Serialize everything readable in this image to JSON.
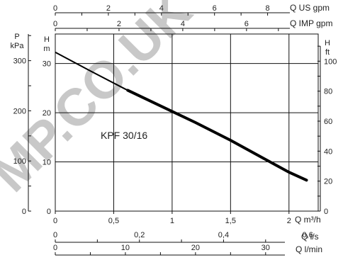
{
  "watermark": "MP.CO.UK",
  "chart_data": {
    "type": "line",
    "series": [
      {
        "name": "KPF 30/16",
        "x": [
          0.0,
          0.3,
          0.6,
          0.9,
          1.2,
          1.5,
          1.8,
          2.0,
          2.15
        ],
        "values": [
          32.3,
          28.5,
          24.8,
          21.4,
          18.0,
          14.4,
          10.5,
          7.9,
          6.3
        ],
        "bold_from_x": 0.62
      }
    ],
    "xlim": [
      0,
      2.25
    ],
    "ylim": [
      0,
      36
    ],
    "grid": true,
    "axes": {
      "top1": {
        "label": "Q US gpm",
        "ticks": [
          "0",
          "2",
          "4",
          "6",
          "8"
        ],
        "tick_values": [
          0,
          2,
          4,
          6,
          8
        ],
        "factor": 4.4029
      },
      "top2": {
        "label": "Q IMP gpm",
        "ticks": [
          "0",
          "2",
          "4",
          "6"
        ],
        "tick_values": [
          0,
          2,
          4,
          6
        ],
        "factor": 3.6662
      },
      "bottom_main": {
        "label": "Q m³/h",
        "ticks": [
          "0",
          "0,5",
          "1",
          "1,5",
          "2"
        ],
        "tick_values": [
          0,
          0.5,
          1,
          1.5,
          2
        ],
        "factor": 1
      },
      "bottom2": {
        "label": "Q l/s",
        "ticks": [
          "0",
          "0,2",
          "0,4",
          "0,6"
        ],
        "tick_values": [
          0,
          0.2,
          0.4,
          0.6
        ],
        "factor": 0.27778
      },
      "bottom3": {
        "label": "Q l/min",
        "ticks": [
          "0",
          "10",
          "20",
          "30"
        ],
        "tick_values": [
          0,
          10,
          20,
          30
        ],
        "factor": 16.667
      },
      "left_main": {
        "label_top": "H",
        "label_unit": "m",
        "ticks": [
          "0",
          "10",
          "20",
          "30"
        ],
        "tick_values": [
          0,
          10,
          20,
          30
        ]
      },
      "left_pressure": {
        "label_top": "P",
        "label_unit": "kPa",
        "ticks": [
          "0",
          "100",
          "200",
          "300"
        ],
        "tick_values": [
          0,
          100,
          200,
          300
        ],
        "factor": 9.81
      },
      "right_ft": {
        "label_top": "H",
        "label_unit": "ft",
        "ticks": [
          "0",
          "20",
          "40",
          "60",
          "80",
          "100"
        ],
        "tick_values": [
          0,
          20,
          40,
          60,
          80,
          100
        ],
        "factor": 3.2808
      }
    }
  }
}
